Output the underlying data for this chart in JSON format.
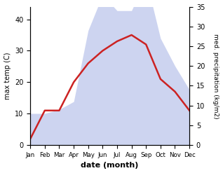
{
  "months": [
    "Jan",
    "Feb",
    "Mar",
    "Apr",
    "May",
    "Jun",
    "Jul",
    "Aug",
    "Sep",
    "Oct",
    "Nov",
    "Dec"
  ],
  "max_temp": [
    2,
    11,
    11,
    20,
    26,
    30,
    33,
    35,
    32,
    21,
    17,
    11
  ],
  "precipitation": [
    8,
    8,
    9,
    11,
    29,
    38,
    34,
    34,
    42,
    27,
    20,
    14
  ],
  "temp_ylim": [
    0,
    44
  ],
  "precip_ylim": [
    0,
    35
  ],
  "precip_scale": 1.2571,
  "temp_yticks": [
    0,
    10,
    20,
    30,
    40
  ],
  "precip_yticks": [
    0,
    5,
    10,
    15,
    20,
    25,
    30,
    35
  ],
  "temp_color": "#cc2222",
  "precip_fill_color": "#c8d0ef",
  "ylabel_left": "max temp (C)",
  "ylabel_right": "med. precipitation (kg/m2)",
  "xlabel": "date (month)",
  "bg_color": "#ffffff"
}
